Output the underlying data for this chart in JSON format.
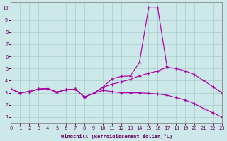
{
  "background_color": "#cce8e8",
  "grid_color": "#aacccc",
  "line_color": "#aa00aa",
  "xlim": [
    0,
    23
  ],
  "ylim": [
    0.5,
    10.5
  ],
  "xticks": [
    0,
    1,
    2,
    3,
    4,
    5,
    6,
    7,
    8,
    9,
    10,
    11,
    12,
    13,
    14,
    15,
    16,
    17,
    18,
    19,
    20,
    21,
    22,
    23
  ],
  "yticks": [
    1,
    2,
    3,
    4,
    5,
    6,
    7,
    8,
    9,
    10
  ],
  "xlabel": "Windchill (Refroidissement éolien,°C)",
  "line1_x": [
    0,
    1,
    2,
    3,
    4,
    5,
    6,
    7,
    8,
    9,
    10,
    11,
    12,
    13,
    14,
    15,
    16,
    17
  ],
  "line1_y": [
    3.3,
    3.0,
    3.1,
    3.3,
    3.35,
    3.05,
    3.25,
    3.3,
    2.65,
    2.95,
    3.45,
    4.15,
    4.35,
    4.38,
    5.5,
    10.0,
    10.0,
    5.2
  ],
  "line2_x": [
    0,
    1,
    2,
    3,
    4,
    5,
    6,
    7,
    8,
    9,
    10,
    11,
    12,
    13,
    14,
    15,
    16,
    17,
    18,
    19,
    20,
    21,
    22,
    23
  ],
  "line2_y": [
    3.3,
    3.0,
    3.1,
    3.3,
    3.35,
    3.05,
    3.25,
    3.3,
    2.65,
    2.95,
    3.45,
    3.7,
    3.9,
    4.1,
    4.4,
    4.6,
    4.8,
    5.1,
    5.0,
    4.8,
    4.5,
    4.0,
    3.5,
    3.0
  ],
  "line3_x": [
    0,
    1,
    2,
    3,
    4,
    5,
    6,
    7,
    8,
    9,
    10,
    11,
    12,
    13,
    14,
    15,
    16,
    17,
    18,
    19,
    20,
    21,
    22,
    23
  ],
  "line3_y": [
    3.3,
    3.0,
    3.1,
    3.3,
    3.35,
    3.05,
    3.25,
    3.3,
    2.65,
    2.95,
    3.2,
    3.1,
    3.0,
    3.0,
    3.0,
    2.95,
    2.9,
    2.8,
    2.6,
    2.4,
    2.1,
    1.7,
    1.35,
    1.0
  ]
}
